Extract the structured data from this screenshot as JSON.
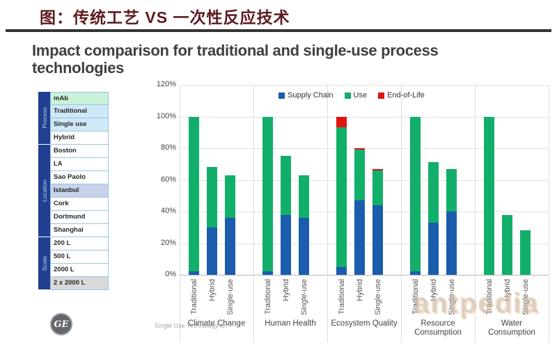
{
  "header": {
    "title_cn": "图：传统工艺 VS 一次性反应技术"
  },
  "slide": {
    "title": "Impact comparison for traditional and single-use process technologies"
  },
  "sidebar_table": {
    "bands": [
      {
        "label": "Process",
        "rows": [
          {
            "label": "mAb",
            "bg": "green"
          },
          {
            "label": "Traditional",
            "bg": "blue"
          },
          {
            "label": "Single use",
            "bg": "blue"
          },
          {
            "label": "Hybrid",
            "bg": "white"
          }
        ]
      },
      {
        "label": "Location",
        "rows": [
          {
            "label": "Boston",
            "bg": "white"
          },
          {
            "label": "LA",
            "bg": "white"
          },
          {
            "label": "Sao Paolo",
            "bg": "white"
          },
          {
            "label": "Istanbul",
            "bg": "periwinkle"
          },
          {
            "label": "Cork",
            "bg": "white"
          },
          {
            "label": "Dortmund",
            "bg": "white"
          },
          {
            "label": "Shanghai",
            "bg": "white"
          }
        ]
      },
      {
        "label": "Scale",
        "rows": [
          {
            "label": "200 L",
            "bg": "white"
          },
          {
            "label": "500 L",
            "bg": "white"
          },
          {
            "label": "2000 L",
            "bg": "white"
          },
          {
            "label": "2 x 2000 L",
            "bg": "gray"
          }
        ]
      }
    ],
    "bg_colors": {
      "green": "#c9f2d8",
      "blue": "#cfe9f7",
      "periwinkle": "#c6d3ea",
      "gray": "#d9d9d9",
      "white": "#ffffff"
    }
  },
  "chart_data": {
    "type": "bar",
    "stacked": true,
    "ylim": [
      0,
      120
    ],
    "yticks": [
      0,
      20,
      40,
      60,
      80,
      100,
      120
    ],
    "yticklabels": [
      "0%",
      "20%",
      "40%",
      "60%",
      "80%",
      "100%",
      "120%"
    ],
    "grid": true,
    "legend_position": "top",
    "legend": [
      {
        "name": "Supply Chain",
        "color": "#1a5dad"
      },
      {
        "name": "Use",
        "color": "#12af6a"
      },
      {
        "name": "End-of-Life",
        "color": "#e01310"
      }
    ],
    "groups": [
      {
        "category": "Climate Change",
        "bars": [
          {
            "label": "Traditional",
            "supply_chain": 2,
            "use": 98,
            "end_of_life": 0
          },
          {
            "label": "Hybrid",
            "supply_chain": 30,
            "use": 38,
            "end_of_life": 0
          },
          {
            "label": "Single-use",
            "supply_chain": 36,
            "use": 27,
            "end_of_life": 0
          }
        ]
      },
      {
        "category": "Human Health",
        "bars": [
          {
            "label": "Traditional",
            "supply_chain": 2,
            "use": 98,
            "end_of_life": 0
          },
          {
            "label": "Hybrid",
            "supply_chain": 38,
            "use": 37,
            "end_of_life": 0
          },
          {
            "label": "Single-use",
            "supply_chain": 36,
            "use": 27,
            "end_of_life": 0
          }
        ]
      },
      {
        "category": "Ecosystem Quality",
        "bars": [
          {
            "label": "Traditional",
            "supply_chain": 5,
            "use": 88,
            "end_of_life": 7
          },
          {
            "label": "Hybrid",
            "supply_chain": 47,
            "use": 32,
            "end_of_life": 1
          },
          {
            "label": "Single-use",
            "supply_chain": 44,
            "use": 22,
            "end_of_life": 1
          }
        ]
      },
      {
        "category": "Resource Consumption",
        "bars": [
          {
            "label": "Traditional",
            "supply_chain": 2,
            "use": 98,
            "end_of_life": 0
          },
          {
            "label": "Hybrid",
            "supply_chain": 33,
            "use": 38,
            "end_of_life": 0
          },
          {
            "label": "Single-use",
            "supply_chain": 40,
            "use": 27,
            "end_of_life": 0
          }
        ]
      },
      {
        "category": "Water Consumption",
        "bars": [
          {
            "label": "Traditional",
            "supply_chain": 0,
            "use": 100,
            "end_of_life": 0
          },
          {
            "label": "Hybrid",
            "supply_chain": 0,
            "use": 38,
            "end_of_life": 0
          },
          {
            "label": "Single-use",
            "supply_chain": 0,
            "use": 28,
            "end_of_life": 0
          }
        ]
      }
    ]
  },
  "footer": {
    "logo_text": "GE",
    "tagline": "Single Use Technology an"
  },
  "watermark": {
    "text": "antpedia"
  }
}
